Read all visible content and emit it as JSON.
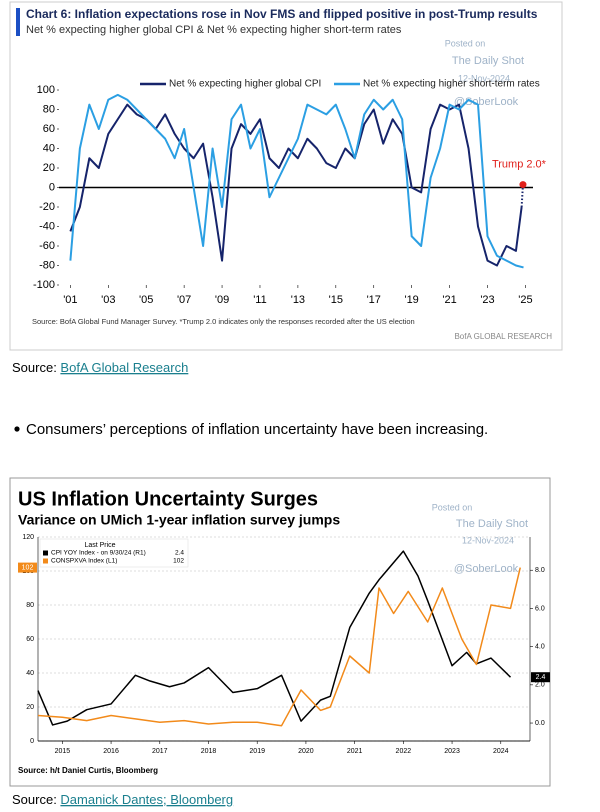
{
  "chart_data": [
    {
      "type": "line",
      "title": "Chart 6: Inflation expectations rose in Nov FMS and flipped positive in post-Trump results",
      "subtitle": "Net % expecting higher global CPI & Net % expecting higher short-term rates",
      "source": "Source: BofA Global Fund Manager Survey. *Trump 2.0 indicates only the responses recorded after the US election",
      "brand": "BofA GLOBAL RESEARCH",
      "watermark": {
        "posted": "Posted on",
        "site": "The Daily Shot",
        "date": "12-Nov-2024",
        "handle": "@SoberLook"
      },
      "xlim": [
        2000.4,
        2025.4
      ],
      "ylim": [
        -100,
        100
      ],
      "xticks": [
        {
          "value": 2001,
          "label": "'01"
        },
        {
          "value": 2003,
          "label": "'03"
        },
        {
          "value": 2005,
          "label": "'05"
        },
        {
          "value": 2007,
          "label": "'07"
        },
        {
          "value": 2009,
          "label": "'09"
        },
        {
          "value": 2011,
          "label": "'11"
        },
        {
          "value": 2013,
          "label": "'13"
        },
        {
          "value": 2015,
          "label": "'15"
        },
        {
          "value": 2017,
          "label": "'17"
        },
        {
          "value": 2019,
          "label": "'19"
        },
        {
          "value": 2021,
          "label": "'21"
        },
        {
          "value": 2023,
          "label": "'23"
        },
        {
          "value": 2025,
          "label": "'25"
        }
      ],
      "yticks": [
        -100,
        -80,
        -60,
        -40,
        -20,
        0,
        20,
        40,
        60,
        80,
        100
      ],
      "grid": false,
      "series": [
        {
          "name": "Net % expecting higher global CPI",
          "color": "#16246b",
          "x": [
            2001,
            2001.5,
            2002,
            2002.5,
            2003,
            2003.5,
            2004,
            2004.5,
            2005,
            2005.5,
            2006,
            2006.5,
            2007,
            2007.5,
            2008,
            2008.5,
            2009,
            2009.5,
            2010,
            2010.5,
            2011,
            2011.5,
            2012,
            2012.5,
            2013,
            2013.5,
            2014,
            2014.5,
            2015,
            2015.5,
            2016,
            2016.5,
            2017,
            2017.5,
            2018,
            2018.5,
            2019,
            2019.5,
            2020,
            2020.5,
            2021,
            2021.5,
            2022,
            2022.5,
            2023,
            2023.5,
            2024,
            2024.5,
            2024.8
          ],
          "values": [
            -45,
            -20,
            30,
            20,
            55,
            70,
            85,
            75,
            70,
            60,
            75,
            55,
            40,
            30,
            45,
            -10,
            -75,
            40,
            65,
            55,
            70,
            30,
            20,
            40,
            30,
            50,
            40,
            25,
            20,
            40,
            30,
            65,
            80,
            45,
            70,
            55,
            0,
            -5,
            60,
            85,
            80,
            85,
            40,
            -40,
            -75,
            -80,
            -60,
            -65,
            -20
          ]
        },
        {
          "name": "Net % expecting higher short-term rates",
          "color": "#2b9fe3",
          "x": [
            2001,
            2001.5,
            2002,
            2002.5,
            2003,
            2003.5,
            2004,
            2004.5,
            2005,
            2005.5,
            2006,
            2006.5,
            2007,
            2007.5,
            2008,
            2008.5,
            2009,
            2009.5,
            2010,
            2010.5,
            2011,
            2011.5,
            2012,
            2012.5,
            2013,
            2013.5,
            2014,
            2014.5,
            2015,
            2015.5,
            2016,
            2016.5,
            2017,
            2017.5,
            2018,
            2018.5,
            2019,
            2019.5,
            2020,
            2020.5,
            2021,
            2021.5,
            2022,
            2022.5,
            2023,
            2023.5,
            2024,
            2024.5,
            2024.9
          ],
          "values": [
            -75,
            40,
            85,
            60,
            90,
            95,
            90,
            80,
            70,
            60,
            50,
            30,
            60,
            0,
            -60,
            40,
            -20,
            70,
            85,
            40,
            60,
            -10,
            10,
            30,
            50,
            85,
            80,
            75,
            85,
            60,
            30,
            75,
            90,
            80,
            90,
            70,
            -50,
            -60,
            10,
            40,
            85,
            80,
            90,
            85,
            -50,
            -70,
            -75,
            -80,
            -82
          ]
        }
      ],
      "annotation": {
        "text": "Trump 2.0*",
        "x": 2024.87,
        "y": 3,
        "color": "#e0201b"
      }
    },
    {
      "type": "line",
      "title": "US Inflation Uncertainty Surges",
      "subtitle": "Variance on UMich 1-year inflation survey jumps",
      "source": "Source: h/t Daniel Curtis, Bloomberg",
      "legend_title": "Last Price",
      "watermark": {
        "posted": "Posted on",
        "site": "The Daily Shot",
        "date": "12-Nov-2024",
        "handle": "@SoberLook"
      },
      "xlim": [
        2015.0,
        2025.1
      ],
      "ylim": [
        0,
        120
      ],
      "y2lim": [
        -0.94,
        9.74
      ],
      "xticks": [
        {
          "value": 2015.5,
          "label": "2015"
        },
        {
          "value": 2016.5,
          "label": "2016"
        },
        {
          "value": 2017.5,
          "label": "2017"
        },
        {
          "value": 2018.5,
          "label": "2018"
        },
        {
          "value": 2019.5,
          "label": "2019"
        },
        {
          "value": 2020.5,
          "label": "2020"
        },
        {
          "value": 2021.5,
          "label": "2021"
        },
        {
          "value": 2022.5,
          "label": "2022"
        },
        {
          "value": 2023.5,
          "label": "2023"
        },
        {
          "value": 2024.5,
          "label": "2024"
        }
      ],
      "yticks": [
        0,
        20,
        40,
        60,
        80,
        100,
        120
      ],
      "y2ticks": [
        {
          "value": 0,
          "label": "0.0"
        },
        {
          "value": 2,
          "label": "2.0"
        },
        {
          "value": 4,
          "label": "4.0"
        },
        {
          "value": 6,
          "label": "6.0"
        },
        {
          "value": 8,
          "label": "8.0"
        }
      ],
      "grid": true,
      "series": [
        {
          "name": "CPI YOY Index - on 9/30/24 (R1)",
          "color": "#000000",
          "axis": "y2",
          "last_value": 2.4,
          "x": [
            2015.0,
            2015.3,
            2015.6,
            2016,
            2016.5,
            2017,
            2017.3,
            2017.7,
            2018,
            2018.5,
            2019,
            2019.5,
            2020,
            2020.4,
            2020.8,
            2021,
            2021.4,
            2021.8,
            2022,
            2022.5,
            2022.8,
            2023,
            2023.5,
            2023.8,
            2024,
            2024.3,
            2024.7
          ],
          "values": [
            1.7,
            -0.1,
            0.1,
            0.7,
            1.0,
            2.5,
            2.2,
            1.9,
            2.1,
            2.9,
            1.6,
            1.8,
            2.5,
            0.1,
            1.2,
            1.4,
            5.0,
            6.8,
            7.5,
            9.0,
            7.7,
            6.4,
            3.0,
            3.7,
            3.1,
            3.4,
            2.4
          ]
        },
        {
          "name": "CONSPXVA Index (L1)",
          "color": "#f28a1a",
          "last_value": 102,
          "x": [
            2015.0,
            2015.5,
            2016,
            2016.5,
            2017,
            2017.5,
            2018,
            2018.5,
            2019,
            2019.5,
            2020,
            2020.4,
            2020.8,
            2021,
            2021.4,
            2021.8,
            2022,
            2022.3,
            2022.6,
            2023,
            2023.3,
            2023.7,
            2024,
            2024.3,
            2024.7,
            2024.9
          ],
          "values": [
            15,
            14,
            12,
            15,
            13,
            11,
            12,
            10,
            11,
            11,
            9,
            30,
            18,
            20,
            50,
            40,
            90,
            75,
            88,
            70,
            90,
            60,
            45,
            80,
            78,
            102
          ]
        }
      ]
    }
  ],
  "captions": [
    {
      "prefix": "Source: ",
      "link": "BofA Global Research"
    },
    {
      "prefix": "Source: ",
      "link": "Damanick Dantes; Bloomberg"
    }
  ],
  "bullet": "Consumers’ perceptions of inflation uncertainty have been increasing."
}
